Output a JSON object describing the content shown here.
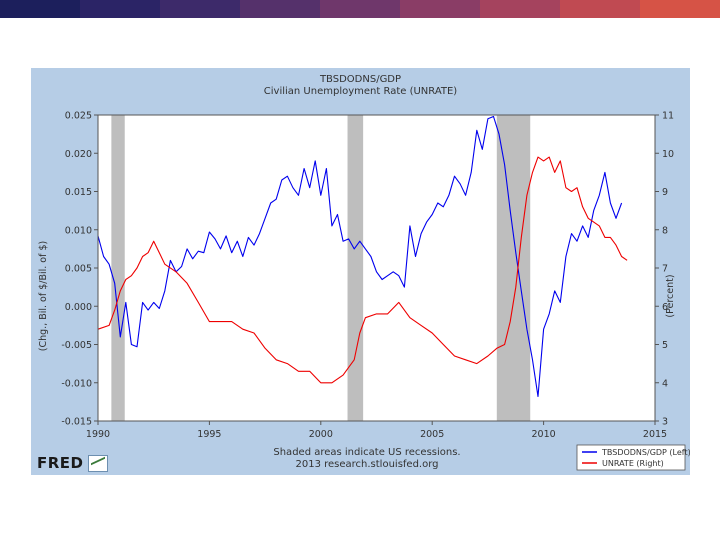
{
  "top_bar_colors": [
    "#1c1f5c",
    "#2b2466",
    "#3d2a6a",
    "#55316b",
    "#6f376b",
    "#8a3d66",
    "#a5435e",
    "#c04a52",
    "#d65346"
  ],
  "fred_logo": {
    "text": "FRED",
    "mark_icon": "fred-graph-icon"
  },
  "colors": {
    "panel": "#b6cde6",
    "plot": "#ffffff",
    "recession": "#bebebe",
    "left_series": "#0000ee",
    "right_series": "#ee0000",
    "text": "#333333"
  },
  "chart_data": {
    "type": "line",
    "title": "TBSDODNS/GDP",
    "subtitle": "Civilian Unemployment Rate (UNRATE)",
    "ylabel_left": "(Chg., Bil. of $/Bil. of $)",
    "ylabel_right": "(Percent)",
    "caption": "Shaded areas indicate US recessions.",
    "source": "2013 research.stlouisfed.org",
    "xlim": [
      1990,
      2015
    ],
    "ylim_left": [
      -0.015,
      0.025
    ],
    "ylim_right": [
      3,
      11
    ],
    "x_ticks": [
      "1990",
      "1995",
      "2000",
      "2005",
      "2010",
      "2015"
    ],
    "y_ticks_left": [
      "-0.015",
      "-0.010",
      "-0.005",
      "0.000",
      "0.005",
      "0.010",
      "0.015",
      "0.020",
      "0.025"
    ],
    "y_ticks_right": [
      "3",
      "4",
      "5",
      "6",
      "7",
      "8",
      "9",
      "10",
      "11"
    ],
    "recessions": [
      [
        1990.6,
        1991.2
      ],
      [
        2001.2,
        2001.9
      ],
      [
        2007.9,
        2009.4
      ]
    ],
    "legend": [
      "TBSDODNS/GDP (Left)",
      "UNRATE (Right)"
    ],
    "series": [
      {
        "name": "TBSDODNS/GDP (Left)",
        "axis": "left",
        "points": [
          [
            1990.0,
            0.0092
          ],
          [
            1990.25,
            0.0065
          ],
          [
            1990.5,
            0.0055
          ],
          [
            1990.75,
            0.003
          ],
          [
            1991.0,
            -0.004
          ],
          [
            1991.25,
            0.0005
          ],
          [
            1991.5,
            -0.005
          ],
          [
            1991.75,
            -0.0053
          ],
          [
            1992.0,
            0.0005
          ],
          [
            1992.25,
            -0.0005
          ],
          [
            1992.5,
            0.0005
          ],
          [
            1992.75,
            -0.0003
          ],
          [
            1993.0,
            0.002
          ],
          [
            1993.25,
            0.006
          ],
          [
            1993.5,
            0.0045
          ],
          [
            1993.75,
            0.0052
          ],
          [
            1994.0,
            0.0075
          ],
          [
            1994.25,
            0.0062
          ],
          [
            1994.5,
            0.0072
          ],
          [
            1994.75,
            0.007
          ],
          [
            1995.0,
            0.0097
          ],
          [
            1995.25,
            0.0088
          ],
          [
            1995.5,
            0.0075
          ],
          [
            1995.75,
            0.0092
          ],
          [
            1996.0,
            0.007
          ],
          [
            1996.25,
            0.0085
          ],
          [
            1996.5,
            0.0065
          ],
          [
            1996.75,
            0.009
          ],
          [
            1997.0,
            0.008
          ],
          [
            1997.25,
            0.0095
          ],
          [
            1997.5,
            0.0115
          ],
          [
            1997.75,
            0.0135
          ],
          [
            1998.0,
            0.014
          ],
          [
            1998.25,
            0.0165
          ],
          [
            1998.5,
            0.017
          ],
          [
            1998.75,
            0.0155
          ],
          [
            1999.0,
            0.0145
          ],
          [
            1999.25,
            0.018
          ],
          [
            1999.5,
            0.0155
          ],
          [
            1999.75,
            0.019
          ],
          [
            2000.0,
            0.0145
          ],
          [
            2000.25,
            0.018
          ],
          [
            2000.5,
            0.0105
          ],
          [
            2000.75,
            0.012
          ],
          [
            2001.0,
            0.0085
          ],
          [
            2001.25,
            0.0088
          ],
          [
            2001.5,
            0.0075
          ],
          [
            2001.75,
            0.0085
          ],
          [
            2002.0,
            0.0075
          ],
          [
            2002.25,
            0.0065
          ],
          [
            2002.5,
            0.0045
          ],
          [
            2002.75,
            0.0035
          ],
          [
            2003.0,
            0.004
          ],
          [
            2003.25,
            0.0045
          ],
          [
            2003.5,
            0.004
          ],
          [
            2003.75,
            0.0025
          ],
          [
            2004.0,
            0.0105
          ],
          [
            2004.25,
            0.0065
          ],
          [
            2004.5,
            0.0095
          ],
          [
            2004.75,
            0.011
          ],
          [
            2005.0,
            0.012
          ],
          [
            2005.25,
            0.0135
          ],
          [
            2005.5,
            0.013
          ],
          [
            2005.75,
            0.0145
          ],
          [
            2006.0,
            0.017
          ],
          [
            2006.25,
            0.016
          ],
          [
            2006.5,
            0.0145
          ],
          [
            2006.75,
            0.0175
          ],
          [
            2007.0,
            0.023
          ],
          [
            2007.25,
            0.0205
          ],
          [
            2007.5,
            0.0245
          ],
          [
            2007.75,
            0.0248
          ],
          [
            2008.0,
            0.0225
          ],
          [
            2008.25,
            0.0185
          ],
          [
            2008.5,
            0.0125
          ],
          [
            2008.75,
            0.007
          ],
          [
            2009.0,
            0.002
          ],
          [
            2009.25,
            -0.003
          ],
          [
            2009.5,
            -0.007
          ],
          [
            2009.75,
            -0.0118
          ],
          [
            2010.0,
            -0.003
          ],
          [
            2010.25,
            -0.001
          ],
          [
            2010.5,
            0.002
          ],
          [
            2010.75,
            0.0005
          ],
          [
            2011.0,
            0.0065
          ],
          [
            2011.25,
            0.0095
          ],
          [
            2011.5,
            0.0085
          ],
          [
            2011.75,
            0.0105
          ],
          [
            2012.0,
            0.009
          ],
          [
            2012.25,
            0.0125
          ],
          [
            2012.5,
            0.0145
          ],
          [
            2012.75,
            0.0175
          ],
          [
            2013.0,
            0.0135
          ],
          [
            2013.25,
            0.0115
          ],
          [
            2013.5,
            0.0135
          ]
        ]
      },
      {
        "name": "UNRATE (Right)",
        "axis": "right",
        "points": [
          [
            1990.0,
            5.4
          ],
          [
            1990.5,
            5.5
          ],
          [
            1990.75,
            5.9
          ],
          [
            1991.0,
            6.4
          ],
          [
            1991.25,
            6.7
          ],
          [
            1991.5,
            6.8
          ],
          [
            1991.75,
            7.0
          ],
          [
            1992.0,
            7.3
          ],
          [
            1992.25,
            7.4
          ],
          [
            1992.5,
            7.7
          ],
          [
            1992.75,
            7.4
          ],
          [
            1993.0,
            7.1
          ],
          [
            1993.5,
            6.9
          ],
          [
            1994.0,
            6.6
          ],
          [
            1994.5,
            6.1
          ],
          [
            1995.0,
            5.6
          ],
          [
            1995.5,
            5.6
          ],
          [
            1996.0,
            5.6
          ],
          [
            1996.5,
            5.4
          ],
          [
            1997.0,
            5.3
          ],
          [
            1997.5,
            4.9
          ],
          [
            1998.0,
            4.6
          ],
          [
            1998.5,
            4.5
          ],
          [
            1999.0,
            4.3
          ],
          [
            1999.5,
            4.3
          ],
          [
            2000.0,
            4.0
          ],
          [
            2000.5,
            4.0
          ],
          [
            2001.0,
            4.2
          ],
          [
            2001.25,
            4.4
          ],
          [
            2001.5,
            4.6
          ],
          [
            2001.75,
            5.3
          ],
          [
            2002.0,
            5.7
          ],
          [
            2002.5,
            5.8
          ],
          [
            2003.0,
            5.8
          ],
          [
            2003.5,
            6.1
          ],
          [
            2004.0,
            5.7
          ],
          [
            2004.5,
            5.5
          ],
          [
            2005.0,
            5.3
          ],
          [
            2005.5,
            5.0
          ],
          [
            2006.0,
            4.7
          ],
          [
            2006.5,
            4.6
          ],
          [
            2007.0,
            4.5
          ],
          [
            2007.5,
            4.7
          ],
          [
            2007.9,
            4.9
          ],
          [
            2008.25,
            5.0
          ],
          [
            2008.5,
            5.6
          ],
          [
            2008.75,
            6.5
          ],
          [
            2009.0,
            7.8
          ],
          [
            2009.25,
            8.9
          ],
          [
            2009.5,
            9.5
          ],
          [
            2009.75,
            9.9
          ],
          [
            2010.0,
            9.8
          ],
          [
            2010.25,
            9.9
          ],
          [
            2010.5,
            9.5
          ],
          [
            2010.75,
            9.8
          ],
          [
            2011.0,
            9.1
          ],
          [
            2011.25,
            9.0
          ],
          [
            2011.5,
            9.1
          ],
          [
            2011.75,
            8.6
          ],
          [
            2012.0,
            8.3
          ],
          [
            2012.25,
            8.2
          ],
          [
            2012.5,
            8.1
          ],
          [
            2012.75,
            7.8
          ],
          [
            2013.0,
            7.8
          ],
          [
            2013.25,
            7.6
          ],
          [
            2013.5,
            7.3
          ],
          [
            2013.75,
            7.2
          ]
        ]
      }
    ]
  }
}
